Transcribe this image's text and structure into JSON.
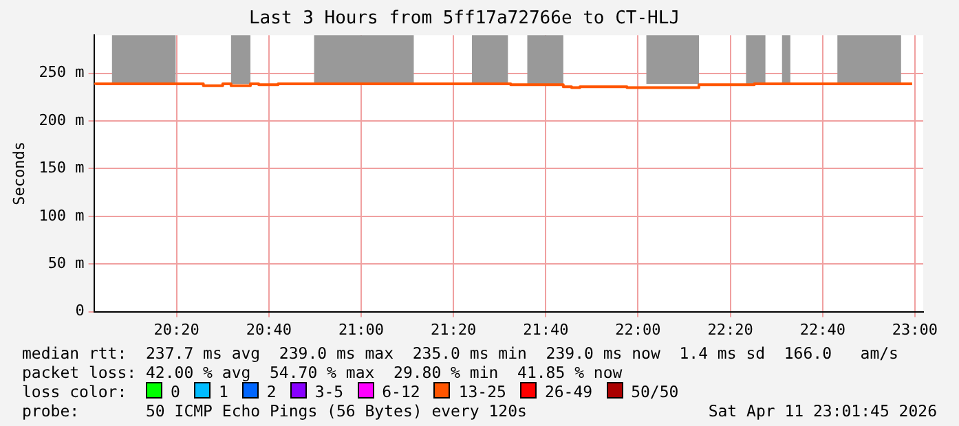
{
  "chart_data": {
    "type": "step",
    "title": "Last 3 Hours from 5ff17a72766e to CT-HLJ",
    "ylabel": "Seconds",
    "xlim": [
      20.035,
      23.03
    ],
    "ylim": [
      0,
      290
    ],
    "xticks": [
      {
        "value": 20.3333,
        "label": "20:20"
      },
      {
        "value": 20.6667,
        "label": "20:40"
      },
      {
        "value": 21,
        "label": "21:00"
      },
      {
        "value": 21.3333,
        "label": "21:20"
      },
      {
        "value": 21.6667,
        "label": "21:40"
      },
      {
        "value": 22,
        "label": "22:00"
      },
      {
        "value": 22.3333,
        "label": "22:20"
      },
      {
        "value": 22.6667,
        "label": "22:40"
      },
      {
        "value": 23,
        "label": "23:00"
      }
    ],
    "yticks": [
      0,
      {
        "value": 50,
        "label": "50 m"
      },
      {
        "value": 100,
        "label": "100 m"
      },
      {
        "value": 150,
        "label": "150 m"
      },
      {
        "value": 200,
        "label": "200 m"
      },
      {
        "value": 250,
        "label": "250 m"
      }
    ],
    "grid": true,
    "legend": false,
    "marker": "none",
    "series": [
      {
        "color": "#ff5500",
        "x": [
          20.04,
          20.43,
          20.5,
          20.53,
          20.6,
          20.63,
          20.7,
          21.0,
          21.54,
          21.73,
          21.76,
          21.79,
          21.96,
          22.03,
          22.22,
          22.42,
          22.75,
          22.99
        ],
        "values": [
          238,
          239,
          237,
          239,
          237,
          239,
          238,
          239,
          239,
          238,
          236,
          235,
          236,
          235,
          235,
          238,
          239,
          239
        ]
      }
    ],
    "bands": [
      {
        "axis": "x",
        "from": 20.1,
        "to": 20.33,
        "color": "#999999"
      },
      {
        "axis": "x",
        "from": 20.53,
        "to": 20.6,
        "color": "#999999"
      },
      {
        "axis": "x",
        "from": 20.83,
        "to": 21.19,
        "color": "#999999"
      },
      {
        "axis": "x",
        "from": 21.4,
        "to": 21.53,
        "color": "#999999"
      },
      {
        "axis": "x",
        "from": 21.6,
        "to": 21.73,
        "color": "#999999"
      },
      {
        "axis": "x",
        "from": 22.03,
        "to": 22.22,
        "color": "#999999"
      },
      {
        "axis": "x",
        "from": 22.39,
        "to": 22.46,
        "color": "#999999"
      },
      {
        "axis": "x",
        "from": 22.52,
        "to": 22.55,
        "color": "#999999"
      },
      {
        "axis": "x",
        "from": 22.72,
        "to": 22.95,
        "color": "#999999"
      }
    ],
    "annotations": [
      "median rtt:  237.7 ms avg  239.0 ms max  235.0 ms min  239.0 ms now  1.4 ms sd  166.0   am/s",
      "packet loss: 42.00 % avg  54.70 % max  29.80 % min  41.85 % now",
      "loss color:",
      "0",
      "1",
      "2",
      "3-5",
      "6-12",
      "13-25",
      "26-49",
      "50/50",
      "probe:       50 ICMP Echo Pings (56 Bytes) every 120s",
      "Sat Apr 11 23:01:45 2026"
    ]
  }
}
